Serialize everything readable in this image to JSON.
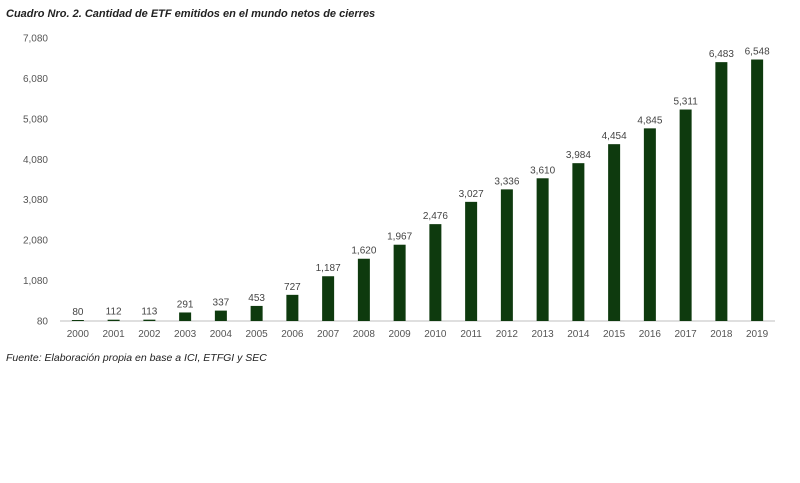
{
  "title": "Cuadro Nro. 2. Cantidad de ETF emitidos en el mundo netos de cierres",
  "source": "Fuente: Elaboración propia en base a ICI, ETFGI y SEC",
  "colors": {
    "bar": "#0e3a0e",
    "axis": "#bfbfbf"
  },
  "chart_data": {
    "type": "bar",
    "categories": [
      "2000",
      "2001",
      "2002",
      "2003",
      "2004",
      "2005",
      "2006",
      "2007",
      "2008",
      "2009",
      "2010",
      "2011",
      "2012",
      "2013",
      "2014",
      "2015",
      "2016",
      "2017",
      "2018",
      "2019"
    ],
    "values": [
      80,
      112,
      113,
      291,
      337,
      453,
      727,
      1187,
      1620,
      1967,
      2476,
      3027,
      3336,
      3610,
      3984,
      4454,
      4845,
      5311,
      6483,
      6548
    ],
    "value_labels": [
      "80",
      "112",
      "113",
      "291",
      "337",
      "453",
      "727",
      "1,187",
      "1,620",
      "1,967",
      "2,476",
      "3,027",
      "3,336",
      "3,610",
      "3,984",
      "4,454",
      "4,845",
      "5,311",
      "6,483",
      "6,548"
    ],
    "yticks": [
      80,
      1080,
      2080,
      3080,
      4080,
      5080,
      6080,
      7080
    ],
    "ytick_labels": [
      "80",
      "1,080",
      "2,080",
      "3,080",
      "4,080",
      "5,080",
      "6,080",
      "7,080"
    ],
    "ylim": [
      80,
      7080
    ],
    "xlabel": "",
    "ylabel": "",
    "grid": false,
    "legend": "none"
  }
}
